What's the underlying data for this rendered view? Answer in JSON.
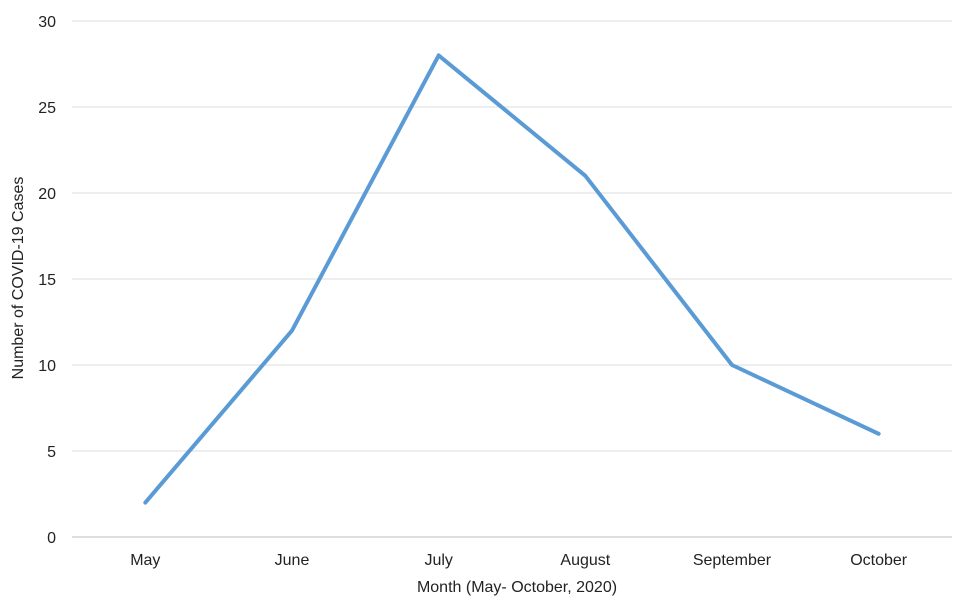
{
  "chart_data": {
    "type": "line",
    "title": "",
    "xlabel": "Month (May- October, 2020)",
    "ylabel": "Number of COVID-19 Cases",
    "categories": [
      "May",
      "June",
      "July",
      "August",
      "September",
      "October"
    ],
    "series": [
      {
        "values": [
          2,
          12,
          28,
          21,
          10,
          6
        ],
        "color": "#5b9bd5"
      }
    ],
    "ylim": [
      0,
      30
    ],
    "yticks": [
      0,
      5,
      10,
      15,
      20,
      25,
      30
    ],
    "grid": true,
    "legend": "none"
  }
}
